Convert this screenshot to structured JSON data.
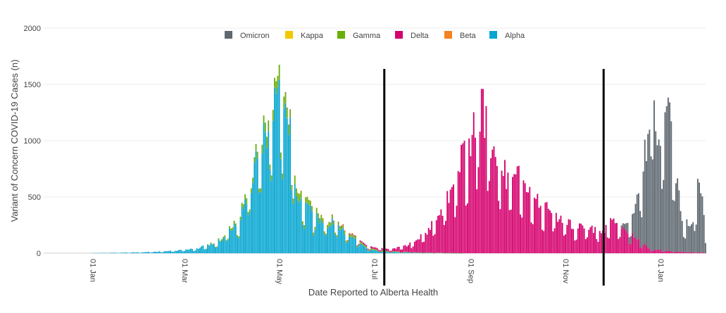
{
  "chart_data": {
    "type": "bar",
    "stacked": true,
    "title": "",
    "xlabel": "Date Reported to Alberta Health",
    "ylabel": "Variant of Concern COVID-19 Cases (n)",
    "ylim": [
      0,
      2000
    ],
    "y_ticks": [
      0,
      500,
      1000,
      1500,
      2000
    ],
    "x_start": "2020-12-01",
    "x_end": "2022-01-30",
    "x_ticks": [
      {
        "date": "2021-01-01",
        "label": "01 Jan"
      },
      {
        "date": "2021-03-01",
        "label": "01 Mar"
      },
      {
        "date": "2021-05-01",
        "label": "01 May"
      },
      {
        "date": "2021-07-01",
        "label": "01 Jul"
      },
      {
        "date": "2021-09-01",
        "label": "01 Sep"
      },
      {
        "date": "2021-11-01",
        "label": "01 Nov"
      },
      {
        "date": "2022-01-01",
        "label": "01 Jan"
      }
    ],
    "grid": true,
    "legend_position": "top-center",
    "vertical_lines": [
      "2021-07-08",
      "2021-11-26"
    ],
    "series_order": [
      "Alpha",
      "Beta",
      "Gamma",
      "Delta",
      "Kappa",
      "Omicron"
    ],
    "legend_order": [
      "Omicron",
      "Kappa",
      "Gamma",
      "Delta",
      "Beta",
      "Alpha"
    ],
    "series": [
      {
        "name": "Alpha",
        "color": "#06a6d1",
        "points": [
          [
            "2021-01-01",
            2
          ],
          [
            "2021-01-20",
            5
          ],
          [
            "2021-02-05",
            10
          ],
          [
            "2021-02-20",
            20
          ],
          [
            "2021-03-01",
            30
          ],
          [
            "2021-03-10",
            45
          ],
          [
            "2021-03-20",
            90
          ],
          [
            "2021-03-25",
            130
          ],
          [
            "2021-03-30",
            200
          ],
          [
            "2021-04-05",
            280
          ],
          [
            "2021-04-10",
            530
          ],
          [
            "2021-04-15",
            720
          ],
          [
            "2021-04-18",
            900
          ],
          [
            "2021-04-22",
            1100
          ],
          [
            "2021-04-25",
            1190
          ],
          [
            "2021-04-28",
            1300
          ],
          [
            "2021-05-01",
            1450
          ],
          [
            "2021-05-04",
            1280
          ],
          [
            "2021-05-08",
            1050
          ],
          [
            "2021-05-12",
            580
          ],
          [
            "2021-05-16",
            470
          ],
          [
            "2021-05-20",
            380
          ],
          [
            "2021-05-25",
            330
          ],
          [
            "2021-06-01",
            250
          ],
          [
            "2021-06-05",
            300
          ],
          [
            "2021-06-10",
            220
          ],
          [
            "2021-06-15",
            150
          ],
          [
            "2021-06-20",
            110
          ],
          [
            "2021-06-25",
            55
          ],
          [
            "2021-07-01",
            25
          ],
          [
            "2021-07-10",
            12
          ],
          [
            "2021-07-25",
            5
          ],
          [
            "2021-08-15",
            2
          ],
          [
            "2021-09-01",
            0
          ]
        ]
      },
      {
        "name": "Beta",
        "color": "#f58220",
        "points": [
          [
            "2021-04-15",
            2
          ],
          [
            "2021-05-01",
            3
          ],
          [
            "2021-06-01",
            1
          ],
          [
            "2021-07-01",
            0
          ]
        ]
      },
      {
        "name": "Gamma",
        "color": "#6aaf08",
        "points": [
          [
            "2021-03-15",
            3
          ],
          [
            "2021-04-01",
            20
          ],
          [
            "2021-04-15",
            55
          ],
          [
            "2021-04-25",
            90
          ],
          [
            "2021-05-01",
            110
          ],
          [
            "2021-05-10",
            70
          ],
          [
            "2021-05-20",
            45
          ],
          [
            "2021-06-01",
            30
          ],
          [
            "2021-06-15",
            20
          ],
          [
            "2021-07-01",
            10
          ],
          [
            "2021-07-15",
            5
          ],
          [
            "2021-08-01",
            2
          ],
          [
            "2021-09-01",
            0
          ]
        ]
      },
      {
        "name": "Delta",
        "color": "#d5006d",
        "points": [
          [
            "2021-05-01",
            0
          ],
          [
            "2021-06-01",
            3
          ],
          [
            "2021-06-20",
            10
          ],
          [
            "2021-07-01",
            18
          ],
          [
            "2021-07-08",
            20
          ],
          [
            "2021-07-15",
            30
          ],
          [
            "2021-07-22",
            60
          ],
          [
            "2021-07-28",
            100
          ],
          [
            "2021-08-05",
            200
          ],
          [
            "2021-08-10",
            300
          ],
          [
            "2021-08-15",
            420
          ],
          [
            "2021-08-20",
            600
          ],
          [
            "2021-08-25",
            800
          ],
          [
            "2021-09-01",
            1000
          ],
          [
            "2021-09-05",
            1250
          ],
          [
            "2021-09-08",
            1300
          ],
          [
            "2021-09-12",
            1050
          ],
          [
            "2021-09-18",
            900
          ],
          [
            "2021-09-25",
            650
          ],
          [
            "2021-10-01",
            700
          ],
          [
            "2021-10-10",
            550
          ],
          [
            "2021-10-20",
            400
          ],
          [
            "2021-10-30",
            300
          ],
          [
            "2021-11-10",
            230
          ],
          [
            "2021-11-20",
            210
          ],
          [
            "2021-11-26",
            200
          ],
          [
            "2021-12-01",
            290
          ],
          [
            "2021-12-05",
            240
          ],
          [
            "2021-12-10",
            190
          ],
          [
            "2021-12-15",
            150
          ],
          [
            "2021-12-20",
            100
          ],
          [
            "2021-12-25",
            40
          ],
          [
            "2022-01-01",
            30
          ],
          [
            "2022-01-10",
            15
          ],
          [
            "2022-01-30",
            5
          ]
        ]
      },
      {
        "name": "Kappa",
        "color": "#f2c800",
        "points": [
          [
            "2021-05-01",
            0
          ],
          [
            "2021-06-01",
            1
          ],
          [
            "2021-07-01",
            0
          ]
        ]
      },
      {
        "name": "Omicron",
        "color": "#5f6870",
        "points": [
          [
            "2021-11-26",
            0
          ],
          [
            "2021-12-05",
            5
          ],
          [
            "2021-12-10",
            60
          ],
          [
            "2021-12-15",
            200
          ],
          [
            "2021-12-20",
            600
          ],
          [
            "2021-12-24",
            1000
          ],
          [
            "2021-12-27",
            1450
          ],
          [
            "2021-12-30",
            800
          ],
          [
            "2022-01-03",
            1100
          ],
          [
            "2022-01-06",
            1350
          ],
          [
            "2022-01-09",
            1000
          ],
          [
            "2022-01-12",
            600
          ],
          [
            "2022-01-15",
            250
          ],
          [
            "2022-01-18",
            280
          ],
          [
            "2022-01-22",
            230
          ],
          [
            "2022-01-26",
            750
          ],
          [
            "2022-01-28",
            450
          ],
          [
            "2022-01-30",
            150
          ]
        ]
      }
    ]
  }
}
